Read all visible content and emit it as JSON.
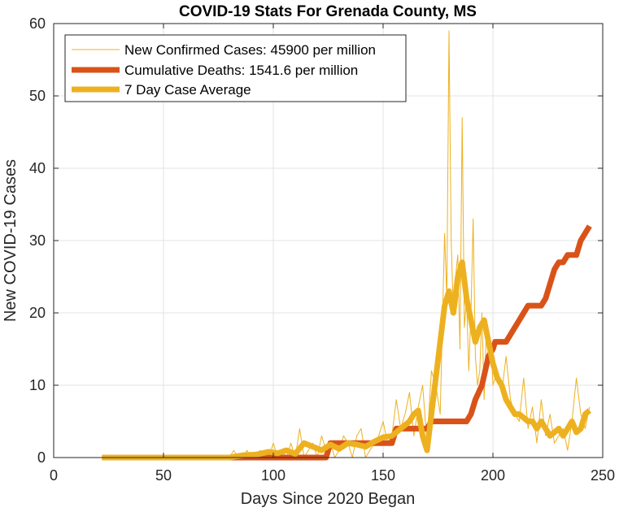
{
  "chart_data": {
    "type": "line",
    "title": "COVID-19 Stats For Grenada County, MS",
    "xlabel": "Days Since 2020 Began",
    "ylabel": "New COVID-19 Cases",
    "xlim": [
      0,
      250
    ],
    "ylim": [
      0,
      60
    ],
    "xticks": [
      0,
      50,
      100,
      150,
      200,
      250
    ],
    "yticks": [
      0,
      10,
      20,
      30,
      40,
      50,
      60
    ],
    "grid": true,
    "legend_position": "top-left",
    "series": [
      {
        "name": "New Confirmed Cases: 45900 per million",
        "color": "#EDB120",
        "style": "thin",
        "x": [
          22,
          80,
          82,
          84,
          86,
          88,
          90,
          92,
          94,
          96,
          98,
          100,
          102,
          104,
          106,
          108,
          110,
          112,
          114,
          116,
          118,
          120,
          122,
          124,
          126,
          128,
          130,
          132,
          134,
          136,
          138,
          140,
          142,
          144,
          146,
          148,
          150,
          152,
          154,
          156,
          158,
          160,
          162,
          164,
          166,
          168,
          170,
          172,
          174,
          176,
          178,
          179,
          180,
          181,
          182,
          183,
          184,
          185,
          186,
          187,
          188,
          189,
          190,
          191,
          192,
          193,
          194,
          195,
          196,
          197,
          198,
          199,
          200,
          202,
          204,
          206,
          208,
          210,
          212,
          214,
          216,
          218,
          220,
          222,
          224,
          226,
          228,
          230,
          232,
          234,
          236,
          238,
          240,
          242,
          244
        ],
        "y": [
          0,
          0,
          1,
          0,
          0,
          1,
          0,
          0,
          1,
          0,
          0,
          2,
          0,
          1,
          0,
          2,
          0,
          4,
          0,
          1,
          2,
          0,
          3,
          1,
          2,
          0,
          1,
          3,
          2,
          0,
          3,
          4,
          0,
          1,
          2,
          3,
          5,
          2,
          3,
          8,
          4,
          6,
          9,
          3,
          7,
          10,
          2,
          12,
          10,
          6,
          31,
          22,
          59,
          30,
          20,
          25,
          28,
          15,
          47,
          18,
          22,
          12,
          20,
          33,
          14,
          10,
          12,
          20,
          8,
          18,
          14,
          16,
          10,
          12,
          9,
          14,
          8,
          6,
          5,
          11,
          4,
          7,
          2,
          8,
          3,
          6,
          2,
          3,
          4,
          1,
          5,
          11,
          6,
          4,
          7
        ]
      },
      {
        "name": "Cumulative Deaths: 1541.6 per million",
        "color": "#D95319",
        "style": "thick",
        "x": [
          22,
          124,
          126,
          154,
          156,
          170,
          172,
          188,
          190,
          192,
          195,
          198,
          200,
          201,
          203,
          206,
          208,
          210,
          212,
          214,
          216,
          218,
          220,
          222,
          224,
          226,
          228,
          230,
          232,
          234,
          236,
          238,
          240,
          242,
          244
        ],
        "y": [
          0,
          0,
          2,
          2,
          4,
          4,
          5,
          5,
          6,
          8,
          10,
          14,
          15,
          16,
          16,
          16,
          17,
          18,
          19,
          20,
          21,
          21,
          21,
          21,
          22,
          24,
          26,
          27,
          27,
          28,
          28,
          28,
          30,
          31,
          32
        ]
      },
      {
        "name": "7 Day Case Average",
        "color": "#EDB120",
        "style": "thick",
        "x": [
          22,
          80,
          86,
          92,
          98,
          102,
          106,
          110,
          114,
          118,
          122,
          126,
          130,
          134,
          138,
          142,
          146,
          150,
          154,
          158,
          162,
          164,
          166,
          168,
          170,
          172,
          174,
          176,
          178,
          180,
          182,
          184,
          186,
          188,
          190,
          192,
          194,
          196,
          198,
          200,
          202,
          204,
          206,
          208,
          210,
          212,
          214,
          216,
          218,
          220,
          222,
          224,
          226,
          228,
          230,
          232,
          234,
          236,
          238,
          240,
          242,
          244
        ],
        "y": [
          0,
          0,
          0.3,
          0.4,
          0.8,
          0.6,
          1,
          0.5,
          2,
          1.5,
          1,
          1.8,
          1.2,
          2,
          1.8,
          1.5,
          2.2,
          2.8,
          3,
          4,
          5,
          6,
          6.5,
          3,
          1,
          6,
          11,
          16,
          21,
          23,
          20,
          25,
          27,
          22,
          19,
          16,
          18,
          19,
          16,
          13,
          11,
          10,
          8,
          7,
          6,
          6,
          5.5,
          5,
          5,
          4,
          5,
          4,
          3,
          3.5,
          4,
          3,
          4,
          5,
          3.5,
          4,
          6,
          6.5
        ]
      }
    ]
  }
}
